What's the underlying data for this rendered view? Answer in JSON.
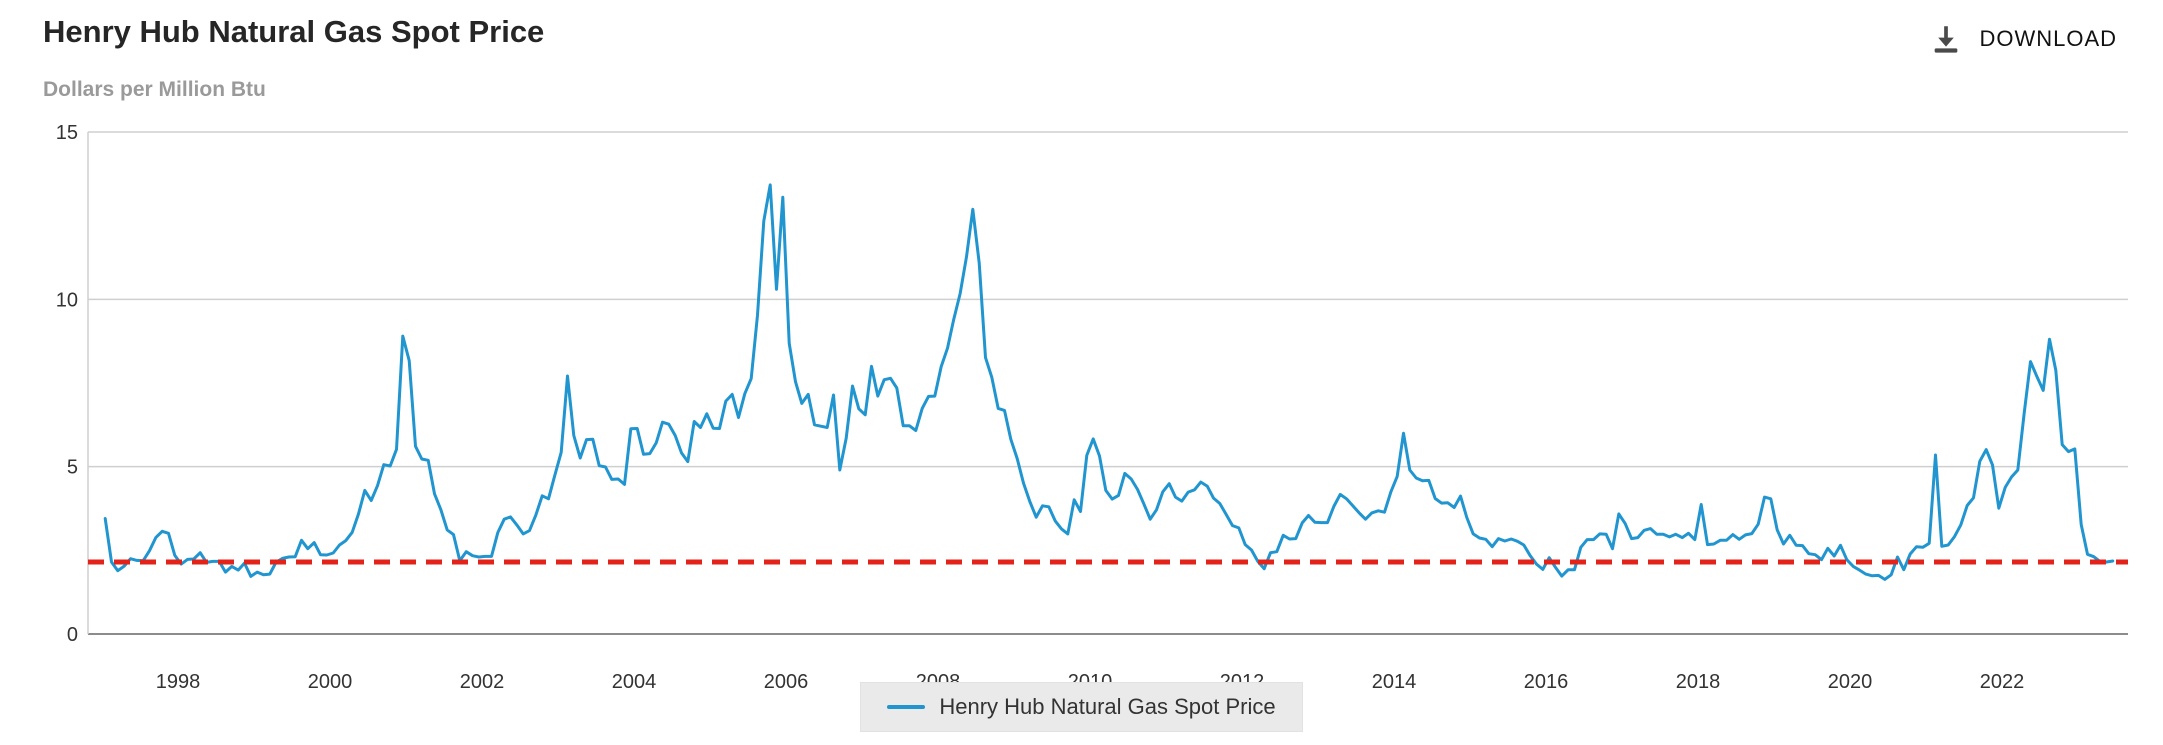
{
  "header": {
    "title": "Henry Hub Natural Gas Spot Price",
    "subtitle": "Dollars per Million Btu",
    "download_label": "DOWNLOAD"
  },
  "legend": {
    "label": "Henry Hub Natural Gas Spot Price"
  },
  "colors": {
    "line": "#2095cf",
    "reference": "#e3231a",
    "grid": "#cfcfcf",
    "axis": "#8c8c8c",
    "text": "#333333",
    "subtitle": "#9a9a9a"
  },
  "chart_data": {
    "type": "line",
    "title": "Henry Hub Natural Gas Spot Price",
    "ylabel": "Dollars per Million Btu",
    "xlim": [
      1997.0,
      2023.75
    ],
    "ylim": [
      0,
      15
    ],
    "x_ticks": [
      1998,
      2000,
      2002,
      2004,
      2006,
      2008,
      2010,
      2012,
      2014,
      2016,
      2018,
      2020,
      2022
    ],
    "y_ticks": [
      0,
      5,
      10,
      15
    ],
    "grid": true,
    "legend_position": "bottom-center",
    "reference_line": {
      "value": 2.15,
      "style": "dashed",
      "color": "#e3231a"
    },
    "series": [
      {
        "name": "Henry Hub Natural Gas Spot Price",
        "start_year": 1997,
        "start_month": 1,
        "values": [
          3.45,
          2.15,
          1.89,
          2.03,
          2.25,
          2.2,
          2.19,
          2.49,
          2.88,
          3.07,
          3.01,
          2.35,
          2.09,
          2.23,
          2.24,
          2.43,
          2.14,
          2.17,
          2.17,
          1.85,
          2.02,
          1.91,
          2.12,
          1.72,
          1.85,
          1.77,
          1.79,
          2.15,
          2.26,
          2.3,
          2.31,
          2.8,
          2.55,
          2.73,
          2.37,
          2.36,
          2.42,
          2.66,
          2.79,
          3.04,
          3.59,
          4.29,
          3.99,
          4.43,
          5.06,
          5.02,
          5.52,
          8.9,
          8.17,
          5.61,
          5.23,
          5.19,
          4.19,
          3.72,
          3.11,
          2.97,
          2.19,
          2.46,
          2.34,
          2.3,
          2.32,
          2.32,
          3.03,
          3.43,
          3.5,
          3.26,
          2.99,
          3.09,
          3.55,
          4.13,
          4.04,
          4.74,
          5.43,
          7.71,
          5.93,
          5.26,
          5.81,
          5.82,
          5.03,
          4.99,
          4.62,
          4.63,
          4.47,
          6.13,
          6.14,
          5.37,
          5.39,
          5.71,
          6.33,
          6.27,
          5.93,
          5.41,
          5.15,
          6.35,
          6.17,
          6.58,
          6.15,
          6.14,
          6.96,
          7.16,
          6.47,
          7.18,
          7.63,
          9.53,
          12.34,
          13.42,
          10.3,
          13.05,
          8.69,
          7.54,
          6.89,
          7.16,
          6.25,
          6.21,
          6.17,
          7.14,
          4.9,
          5.85,
          7.41,
          6.73,
          6.55,
          8.0,
          7.11,
          7.6,
          7.64,
          7.35,
          6.22,
          6.22,
          6.08,
          6.74,
          7.1,
          7.11,
          7.99,
          8.54,
          9.41,
          10.18,
          11.27,
          12.69,
          11.09,
          8.26,
          7.67,
          6.74,
          6.68,
          5.82,
          5.24,
          4.51,
          3.96,
          3.49,
          3.83,
          3.8,
          3.38,
          3.14,
          2.99,
          4.01,
          3.66,
          5.34,
          5.83,
          5.32,
          4.29,
          4.03,
          4.14,
          4.8,
          4.63,
          4.32,
          3.89,
          3.43,
          3.71,
          4.25,
          4.49,
          4.09,
          3.97,
          4.24,
          4.31,
          4.54,
          4.42,
          4.06,
          3.9,
          3.57,
          3.24,
          3.17,
          2.67,
          2.51,
          2.17,
          1.95,
          2.43,
          2.46,
          2.95,
          2.84,
          2.85,
          3.32,
          3.54,
          3.34,
          3.33,
          3.33,
          3.81,
          4.17,
          4.04,
          3.83,
          3.62,
          3.43,
          3.62,
          3.68,
          3.64,
          4.24,
          4.71,
          6.0,
          4.9,
          4.66,
          4.58,
          4.59,
          4.05,
          3.91,
          3.92,
          3.78,
          4.12,
          3.48,
          2.99,
          2.87,
          2.83,
          2.61,
          2.85,
          2.78,
          2.84,
          2.77,
          2.66,
          2.34,
          2.09,
          1.93,
          2.28,
          1.99,
          1.73,
          1.92,
          1.92,
          2.59,
          2.82,
          2.82,
          2.99,
          2.98,
          2.55,
          3.59,
          3.3,
          2.85,
          2.88,
          3.1,
          3.15,
          2.98,
          2.98,
          2.9,
          2.98,
          2.88,
          3.01,
          2.82,
          3.87,
          2.67,
          2.69,
          2.8,
          2.8,
          2.97,
          2.83,
          2.96,
          3.0,
          3.28,
          4.09,
          4.04,
          3.11,
          2.69,
          2.95,
          2.65,
          2.64,
          2.4,
          2.37,
          2.22,
          2.56,
          2.33,
          2.65,
          2.22,
          2.02,
          1.91,
          1.79,
          1.74,
          1.75,
          1.63,
          1.77,
          2.3,
          1.92,
          2.39,
          2.61,
          2.59,
          2.71,
          5.35,
          2.62,
          2.66,
          2.91,
          3.26,
          3.84,
          4.07,
          5.16,
          5.51,
          5.05,
          3.76,
          4.38,
          4.69,
          4.9,
          6.6,
          8.14,
          7.7,
          7.28,
          8.81,
          7.88,
          5.66,
          5.45,
          5.53,
          3.27,
          2.38,
          2.31,
          2.16,
          2.15,
          2.18
        ]
      }
    ]
  }
}
